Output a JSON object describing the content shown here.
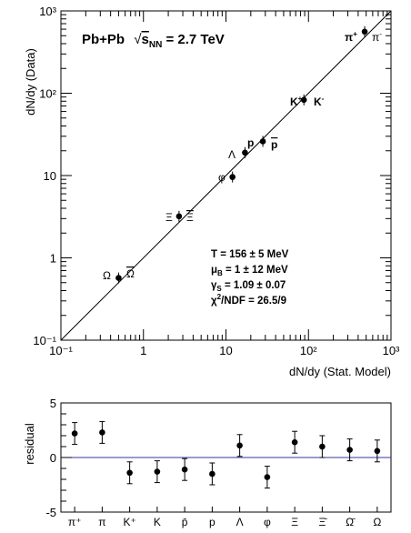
{
  "chart_data": [
    {
      "type": "scatter",
      "title": "Pb+Pb √s_NN = 2.7 TeV",
      "xlabel": "dN/dy (Stat. Model)",
      "ylabel": "dN/dy (Data)",
      "xscale": "log",
      "yscale": "log",
      "xlim": [
        0.1,
        1000
      ],
      "ylim": [
        0.1,
        1000
      ],
      "xticks": [
        "10⁻¹",
        "1",
        "10",
        "10²",
        "10³"
      ],
      "yticks": [
        "10⁻¹",
        "1",
        "10",
        "10²",
        "10³"
      ],
      "diagonal_line": true,
      "points": [
        {
          "label": "π⁺ π⁻",
          "x": 480,
          "y": 560
        },
        {
          "label": "K⁺ K⁻",
          "x": 88,
          "y": 83
        },
        {
          "label": "p p̄",
          "x": 28,
          "y": 26
        },
        {
          "label": "Λ",
          "x": 17,
          "y": 19
        },
        {
          "label": "φ",
          "x": 12,
          "y": 9.6
        },
        {
          "label": "Ξ Ξ̄",
          "x": 2.7,
          "y": 3.2
        },
        {
          "label": "Ω Ω̄",
          "x": 0.5,
          "y": 0.57
        }
      ],
      "annotations": [
        "T = 156 ± 5 MeV",
        "μB = 1 ± 12 MeV",
        "γS = 1.09 ± 0.07",
        "χ²/NDF = 26.5/9"
      ]
    },
    {
      "type": "scatter",
      "ylabel": "residual",
      "ylim": [
        -5,
        5
      ],
      "yticks": [
        "-5",
        "0",
        "5"
      ],
      "categories": [
        "π⁺",
        "π",
        "K⁺",
        "K",
        "p̄",
        "p",
        "Λ",
        "φ",
        "Ξ",
        "Ξ̄",
        "Ω̄",
        "Ω"
      ],
      "values": [
        2.2,
        2.3,
        -1.4,
        -1.3,
        -1.1,
        -1.5,
        1.1,
        -1.8,
        1.4,
        1.0,
        0.7,
        0.6
      ],
      "errors": [
        1.0,
        1.0,
        1.0,
        1.0,
        1.0,
        1.0,
        1.0,
        1.0,
        1.0,
        1.0,
        1.0,
        1.0
      ],
      "zero_line_color": "#3333aa"
    }
  ]
}
